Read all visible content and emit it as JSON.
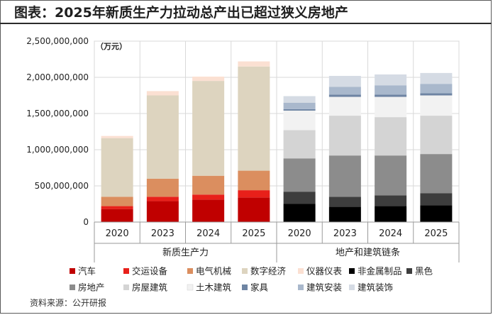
{
  "header": {
    "title": "图表：2025年新质生产力拉动总产出已超过狭义房地产"
  },
  "footer": {
    "source": "资料来源：公开研报"
  },
  "chart_data": {
    "type": "stacked-bar",
    "title": "图表：2025年新质生产力拉动总产出已超过狭义房地产",
    "ylabel": "（万元）",
    "ylim": [
      0,
      2500000000
    ],
    "yticks": [
      0,
      500000000,
      1000000000,
      1500000000,
      2000000000,
      2500000000
    ],
    "ytick_labels": [
      "0",
      "500,000,000",
      "1,000,000,000",
      "1,500,000,000",
      "2,000,000,000",
      "2,500,000,000"
    ],
    "groups": [
      {
        "label": "新质生产力",
        "categories": [
          "2020",
          "2023",
          "2024",
          "2025"
        ]
      },
      {
        "label": "地产和建筑链条",
        "categories": [
          "2020",
          "2023",
          "2024",
          "2025"
        ]
      }
    ],
    "series": [
      {
        "name": "汽车",
        "color": "#c00000",
        "values": [
          180000000,
          290000000,
          310000000,
          340000000,
          0,
          0,
          0,
          0
        ]
      },
      {
        "name": "交运设备",
        "color": "#e8201a",
        "values": [
          40000000,
          60000000,
          70000000,
          100000000,
          0,
          0,
          0,
          0
        ]
      },
      {
        "name": "电气机械",
        "color": "#db8e5f",
        "values": [
          130000000,
          250000000,
          260000000,
          270000000,
          0,
          0,
          0,
          0
        ]
      },
      {
        "name": "数字经济",
        "color": "#ddd4bf",
        "values": [
          810000000,
          1150000000,
          1310000000,
          1440000000,
          0,
          0,
          0,
          0
        ]
      },
      {
        "name": "仪器仪表",
        "color": "#fbe0d2",
        "values": [
          30000000,
          60000000,
          60000000,
          70000000,
          0,
          0,
          0,
          0
        ]
      },
      {
        "name": "非金属制品",
        "color": "#000000",
        "values": [
          0,
          0,
          0,
          0,
          250000000,
          210000000,
          220000000,
          230000000
        ]
      },
      {
        "name": "黑色",
        "color": "#3d3d3d",
        "values": [
          0,
          0,
          0,
          0,
          170000000,
          140000000,
          150000000,
          170000000
        ]
      },
      {
        "name": "房地产",
        "color": "#8c8c8c",
        "values": [
          0,
          0,
          0,
          0,
          460000000,
          570000000,
          550000000,
          540000000
        ]
      },
      {
        "name": "房屋建筑",
        "color": "#d4d4d4",
        "values": [
          0,
          0,
          0,
          0,
          390000000,
          550000000,
          530000000,
          530000000
        ]
      },
      {
        "name": "土木建筑",
        "color": "#f2f2f2",
        "values": [
          0,
          0,
          0,
          0,
          270000000,
          260000000,
          280000000,
          280000000
        ]
      },
      {
        "name": "家具",
        "color": "#6e84a3",
        "values": [
          0,
          0,
          0,
          0,
          20000000,
          30000000,
          30000000,
          30000000
        ]
      },
      {
        "name": "建筑安装",
        "color": "#a9b8cc",
        "values": [
          0,
          0,
          0,
          0,
          90000000,
          110000000,
          130000000,
          130000000
        ]
      },
      {
        "name": "建筑装饰",
        "color": "#d5dbe4",
        "values": [
          0,
          0,
          0,
          0,
          90000000,
          150000000,
          150000000,
          150000000
        ]
      }
    ],
    "legend_position": "bottom",
    "legend_order": [
      "汽车",
      "交运设备",
      "电气机械",
      "数字经济",
      "仪器仪表",
      "非金属制品",
      "黑色",
      "房地产",
      "房屋建筑",
      "土木建筑",
      "家具",
      "建筑安装",
      "建筑装饰"
    ],
    "grid": true
  }
}
